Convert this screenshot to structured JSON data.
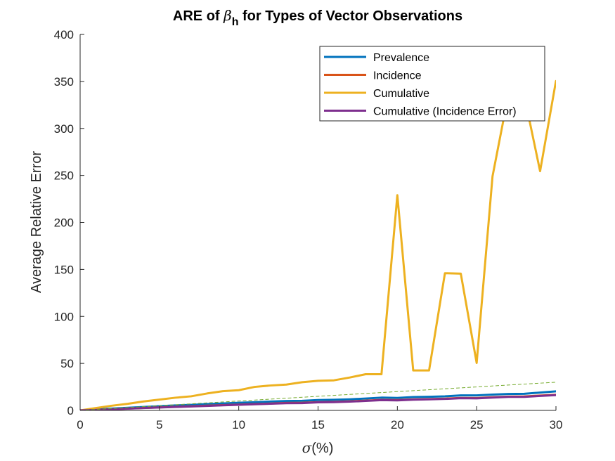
{
  "chart_data": {
    "type": "line",
    "title": "ARE of β_h for Types of Vector Observations",
    "title_parts": {
      "prefix": "ARE of ",
      "symbol": "β",
      "subscript": "h",
      "suffix": " for Types of Vector Observations"
    },
    "xlabel": "σ(%)",
    "xlabel_parts": {
      "symbol": "σ",
      "rest": "(%)"
    },
    "ylabel": "Average Relative Error",
    "xlim": [
      0,
      30
    ],
    "ylim": [
      0,
      400
    ],
    "xticks": [
      0,
      5,
      10,
      15,
      20,
      25,
      30
    ],
    "yticks": [
      0,
      50,
      100,
      150,
      200,
      250,
      300,
      350,
      400
    ],
    "xtick_labels": [
      "0",
      "5",
      "10",
      "15",
      "20",
      "25",
      "30"
    ],
    "ytick_labels": [
      "0",
      "50",
      "100",
      "150",
      "200",
      "250",
      "300",
      "350",
      "400"
    ],
    "grid": false,
    "legend_position": "top-right",
    "x": [
      0,
      1,
      2,
      3,
      4,
      5,
      6,
      7,
      8,
      9,
      10,
      11,
      12,
      13,
      14,
      15,
      16,
      17,
      18,
      19,
      20,
      21,
      22,
      23,
      24,
      25,
      26,
      27,
      28,
      29,
      30
    ],
    "series": [
      {
        "name": "Prevalence",
        "color": "#0072BD",
        "values": [
          0,
          1.0,
          2.0,
          2.8,
          3.6,
          4.5,
          5.3,
          5.9,
          6.7,
          7.4,
          8.1,
          8.7,
          9.4,
          10.0,
          10.2,
          11.0,
          11.3,
          11.8,
          12.6,
          13.6,
          13.3,
          14.2,
          14.5,
          15.0,
          16.0,
          16.0,
          16.8,
          17.5,
          17.7,
          19.0,
          20.3
        ]
      },
      {
        "name": "Incidence",
        "color": "#D95319",
        "values": [
          0,
          0.6,
          1.3,
          2.0,
          2.6,
          3.2,
          3.8,
          4.4,
          5.0,
          5.6,
          6.2,
          6.7,
          7.3,
          7.9,
          8.1,
          8.8,
          9.1,
          9.6,
          10.4,
          11.2,
          11.0,
          11.7,
          12.1,
          12.5,
          13.3,
          13.2,
          14.0,
          14.7,
          14.9,
          15.8,
          16.6
        ]
      },
      {
        "name": "Cumulative",
        "color": "#EDB120",
        "values": [
          0,
          2.5,
          5.0,
          7.0,
          9.5,
          11.5,
          13.5,
          15.0,
          18.0,
          20.5,
          21.5,
          25.0,
          26.5,
          27.5,
          30.0,
          31.5,
          32.0,
          35.0,
          38.5,
          38.5,
          229,
          42.5,
          42.5,
          146,
          145.5,
          50.5,
          249,
          336,
          335,
          254.5,
          350.5
        ]
      },
      {
        "name": "Cumulative (Incidence Error)",
        "color": "#7E2F8E",
        "values": [
          0,
          0.5,
          1.2,
          1.9,
          2.5,
          3.1,
          3.6,
          4.2,
          4.8,
          5.4,
          6.0,
          6.5,
          7.1,
          7.7,
          7.8,
          8.6,
          8.8,
          9.3,
          10.1,
          10.9,
          10.7,
          11.4,
          11.8,
          12.2,
          13.0,
          12.8,
          13.6,
          14.4,
          14.4,
          15.4,
          16.3
        ]
      }
    ],
    "reference_line": {
      "style": "dashed",
      "color": "#77AC30",
      "x": [
        0,
        30
      ],
      "y": [
        0,
        30
      ]
    }
  }
}
